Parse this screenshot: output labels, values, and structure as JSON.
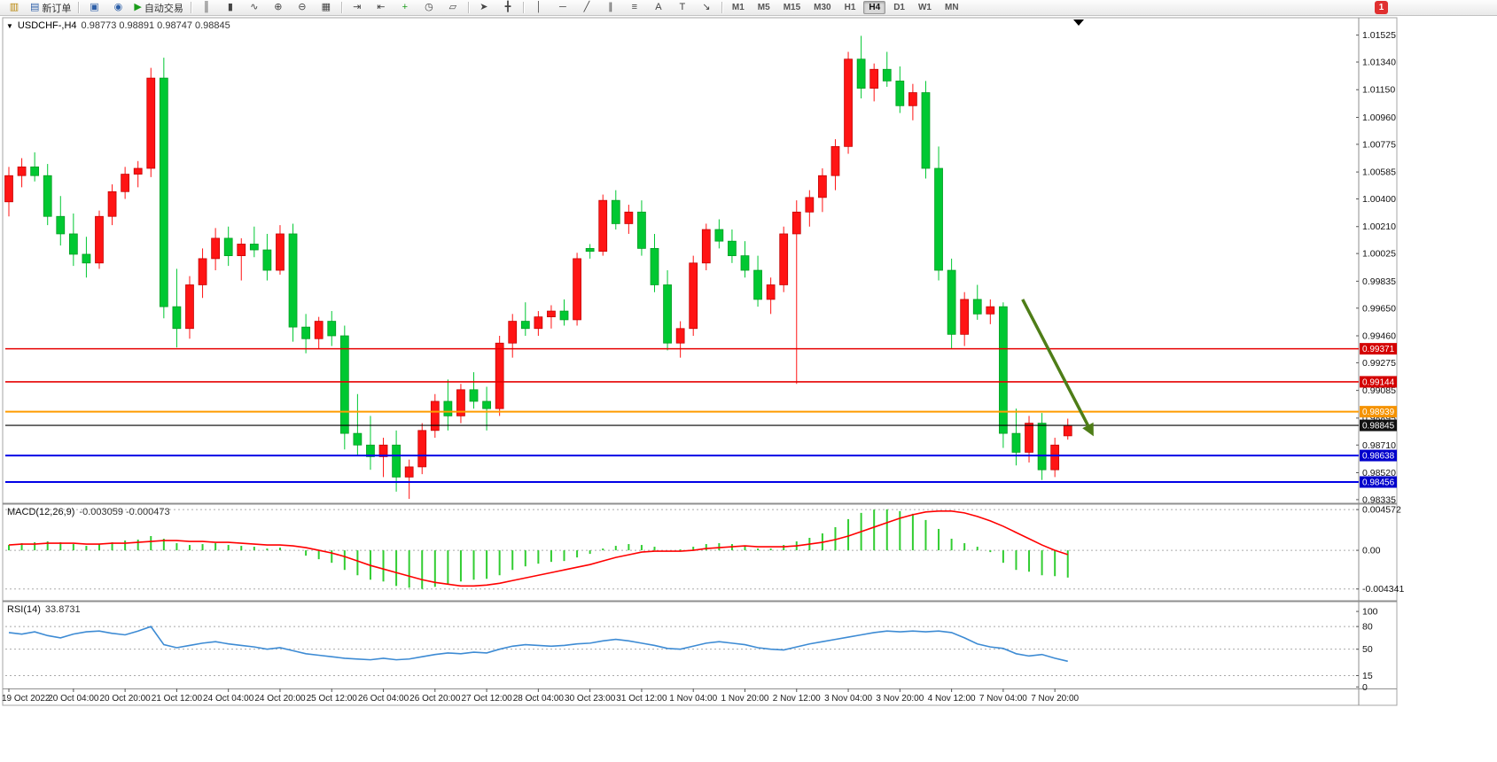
{
  "icons": {
    "collapse": "▼"
  },
  "toolbar": {
    "badge": "1",
    "timeframes": [
      "M1",
      "M5",
      "M15",
      "M30",
      "H1",
      "H4",
      "D1",
      "W1",
      "MN"
    ],
    "active_timeframe": "H4",
    "items": [
      {
        "t": "icon",
        "name": "new-chart",
        "g": "▥",
        "c": "#b8860b"
      },
      {
        "t": "text",
        "name": "new-order",
        "g": "▤",
        "c": "#2d5fa8",
        "label": "新订单"
      },
      {
        "t": "sep"
      },
      {
        "t": "icon",
        "name": "charts-window",
        "g": "▣",
        "c": "#2d5fa8"
      },
      {
        "t": "icon",
        "name": "sound",
        "g": "◉",
        "c": "#2d5fa8"
      },
      {
        "t": "text",
        "name": "auto-trading",
        "g": "▶",
        "c": "#1a9c1a",
        "label": "自动交易"
      },
      {
        "t": "sep"
      },
      {
        "t": "icon",
        "name": "bars-chart-type",
        "g": "║",
        "c": "#444444"
      },
      {
        "t": "icon",
        "name": "candles-chart-type",
        "g": "▮",
        "c": "#444444"
      },
      {
        "t": "icon",
        "name": "line-chart-type",
        "g": "∿",
        "c": "#444444"
      },
      {
        "t": "icon",
        "name": "zoom-in",
        "g": "⊕",
        "c": "#444444"
      },
      {
        "t": "icon",
        "name": "zoom-out",
        "g": "⊖",
        "c": "#444444"
      },
      {
        "t": "icon",
        "name": "tile-windows",
        "g": "▦",
        "c": "#444444"
      },
      {
        "t": "sep"
      },
      {
        "t": "icon",
        "name": "auto-scroll",
        "g": "⇥",
        "c": "#444444"
      },
      {
        "t": "icon",
        "name": "chart-shift",
        "g": "⇤",
        "c": "#444444"
      },
      {
        "t": "icon",
        "name": "add-indicator",
        "g": "+",
        "c": "#1a9c1a"
      },
      {
        "t": "icon",
        "name": "period-clock",
        "g": "◷",
        "c": "#444444"
      },
      {
        "t": "icon",
        "name": "objects-list",
        "g": "▱",
        "c": "#444444"
      },
      {
        "t": "sep"
      },
      {
        "t": "icon",
        "name": "cursor",
        "g": "➤",
        "c": "#444444"
      },
      {
        "t": "icon",
        "name": "crosshair",
        "g": "╋",
        "c": "#444444"
      },
      {
        "t": "sep"
      },
      {
        "t": "icon",
        "name": "vertical-line-tool",
        "g": "│",
        "c": "#444444"
      },
      {
        "t": "icon",
        "name": "horizontal-line-tool",
        "g": "─",
        "c": "#444444"
      },
      {
        "t": "icon",
        "name": "trendline-tool",
        "g": "╱",
        "c": "#444444"
      },
      {
        "t": "icon",
        "name": "channel-tool",
        "g": "∥",
        "c": "#444444"
      },
      {
        "t": "icon",
        "name": "fibonacci-tool",
        "g": "≡",
        "c": "#444444"
      },
      {
        "t": "icon",
        "name": "text-tool",
        "g": "A",
        "c": "#444444"
      },
      {
        "t": "icon",
        "name": "label-tool",
        "g": "T",
        "c": "#444444"
      },
      {
        "t": "icon",
        "name": "arrow-tool",
        "g": "↘",
        "c": "#444444"
      },
      {
        "t": "sep"
      }
    ]
  },
  "chart_data": {
    "type": "candlestick+indicators",
    "symbol": "USDCHF-",
    "timeframe": "H4",
    "title": "USDCHF-,H4",
    "ohlc_text": "0.98773 0.98891 0.98747 0.98845",
    "colors": {
      "up": "#ff1414",
      "up_edge": "#c00000",
      "down": "#00c832",
      "down_edge": "#009a20",
      "macd_hist": "#32cd32",
      "macd_signal": "#ff0000",
      "rsi_line": "#3d8bd4",
      "grid": "#ababab",
      "axis_text": "#111111",
      "arrow": "#4e7d17"
    },
    "price_axis_ticks": [
      "1.01525",
      "1.01340",
      "1.01150",
      "1.00960",
      "1.00775",
      "1.00585",
      "1.00400",
      "1.00210",
      "1.00025",
      "0.99835",
      "0.99650",
      "0.99460",
      "0.99275",
      "0.99085",
      "0.98895",
      "0.98710",
      "0.98520",
      "0.98335"
    ],
    "hlines": [
      {
        "price": 0.99371,
        "label": "0.99371",
        "color": "#e60000",
        "bg": "#d40000",
        "w": 1.6
      },
      {
        "price": 0.99144,
        "label": "0.99144",
        "color": "#e60000",
        "bg": "#d40000",
        "w": 1.6
      },
      {
        "price": 0.98939,
        "label": "0.98939",
        "color": "#ff9c00",
        "bg": "#f59300",
        "w": 2
      },
      {
        "price": 0.98845,
        "label": "0.98845",
        "color": "#000000",
        "bg": "#111111",
        "w": 1.2
      },
      {
        "price": 0.98638,
        "label": "0.98638",
        "color": "#0000e6",
        "bg": "#0000cc",
        "w": 2
      },
      {
        "price": 0.98456,
        "label": "0.98456",
        "color": "#0000e6",
        "bg": "#0000cc",
        "w": 2
      }
    ],
    "arrow_annotation": {
      "from": {
        "ci": 78.5,
        "price": 0.9971
      },
      "to": {
        "ci": 84,
        "price": 0.9877
      }
    },
    "x_label_indices": [
      0,
      5,
      9,
      13,
      17,
      21,
      25,
      29,
      33,
      37,
      41,
      45,
      49,
      53,
      57,
      61,
      65,
      69,
      73,
      77,
      81
    ],
    "x_labels": [
      "19 Oct 2022",
      "20 Oct 04:00",
      "20 Oct 20:00",
      "21 Oct 12:00",
      "24 Oct 04:00",
      "24 Oct 20:00",
      "25 Oct 12:00",
      "26 Oct 04:00",
      "26 Oct 20:00",
      "27 Oct 12:00",
      "28 Oct 04:00",
      "30 Oct 23:00",
      "31 Oct 12:00",
      "1 Nov 04:00",
      "1 Nov 20:00",
      "2 Nov 12:00",
      "3 Nov 04:00",
      "3 Nov 20:00",
      "4 Nov 12:00",
      "7 Nov 04:00",
      "7 Nov 20:00"
    ],
    "candles": [
      [
        1.0038,
        1.0062,
        1.0028,
        1.0056
      ],
      [
        1.0056,
        1.0068,
        1.0048,
        1.0062
      ],
      [
        1.0062,
        1.0072,
        1.0052,
        1.0056
      ],
      [
        1.0056,
        1.0064,
        1.0022,
        1.0028
      ],
      [
        1.0028,
        1.0042,
        1.0008,
        1.0016
      ],
      [
        1.0016,
        1.003,
        0.9994,
        1.0002
      ],
      [
        1.0002,
        1.0014,
        0.9986,
        0.9996
      ],
      [
        0.9996,
        1.0032,
        0.9992,
        1.0028
      ],
      [
        1.0028,
        1.005,
        1.0022,
        1.0045
      ],
      [
        1.0045,
        1.0062,
        1.004,
        1.0057
      ],
      [
        1.0057,
        1.0066,
        1.0048,
        1.0061
      ],
      [
        1.0061,
        1.013,
        1.0055,
        1.0123
      ],
      [
        1.0123,
        1.0137,
        0.9958,
        0.9966
      ],
      [
        0.9966,
        0.9992,
        0.9938,
        0.9951
      ],
      [
        0.9951,
        0.9987,
        0.9944,
        0.9981
      ],
      [
        0.9981,
        1.0006,
        0.9972,
        0.9999
      ],
      [
        0.9999,
        1.002,
        0.9991,
        1.0013
      ],
      [
        1.0013,
        1.0021,
        0.9994,
        1.0001
      ],
      [
        1.0001,
        1.0013,
        0.9984,
        1.0009
      ],
      [
        1.0009,
        1.0021,
        1.0,
        1.0005
      ],
      [
        1.0005,
        1.0016,
        0.9984,
        0.9991
      ],
      [
        0.9991,
        1.0022,
        0.9988,
        1.0016
      ],
      [
        1.0016,
        1.0023,
        0.9942,
        0.9952
      ],
      [
        0.9952,
        0.9961,
        0.9934,
        0.9944
      ],
      [
        0.9944,
        0.9959,
        0.9937,
        0.9956
      ],
      [
        0.9956,
        0.9963,
        0.9939,
        0.9946
      ],
      [
        0.9946,
        0.9953,
        0.9868,
        0.9879
      ],
      [
        0.9879,
        0.9906,
        0.9864,
        0.9871
      ],
      [
        0.9871,
        0.9891,
        0.9854,
        0.9863
      ],
      [
        0.9863,
        0.9876,
        0.9849,
        0.9871
      ],
      [
        0.9871,
        0.9881,
        0.9839,
        0.9849
      ],
      [
        0.9849,
        0.9861,
        0.9834,
        0.9856
      ],
      [
        0.9856,
        0.9886,
        0.9851,
        0.9881
      ],
      [
        0.9881,
        0.9906,
        0.9876,
        0.9901
      ],
      [
        0.9901,
        0.9916,
        0.9881,
        0.9891
      ],
      [
        0.9891,
        0.9913,
        0.9886,
        0.9909
      ],
      [
        0.9909,
        0.9921,
        0.9896,
        0.9901
      ],
      [
        0.9901,
        0.9911,
        0.9881,
        0.9896
      ],
      [
        0.9896,
        0.9946,
        0.9891,
        0.9941
      ],
      [
        0.9941,
        0.9961,
        0.9931,
        0.9956
      ],
      [
        0.9956,
        0.9969,
        0.9946,
        0.9951
      ],
      [
        0.9951,
        0.9963,
        0.9946,
        0.9959
      ],
      [
        0.9959,
        0.9967,
        0.9951,
        0.9963
      ],
      [
        0.9963,
        0.9971,
        0.9953,
        0.9957
      ],
      [
        0.9957,
        1.0003,
        0.9953,
        0.9999
      ],
      [
        1.0006,
        1.0009,
        0.9999,
        1.0004
      ],
      [
        1.0004,
        1.0043,
        1.0001,
        1.0039
      ],
      [
        1.0039,
        1.0046,
        1.0019,
        1.0023
      ],
      [
        1.0023,
        1.0036,
        1.0016,
        1.0031
      ],
      [
        1.0031,
        1.0039,
        1.0001,
        1.0006
      ],
      [
        1.0006,
        1.0016,
        0.9976,
        0.9981
      ],
      [
        0.9981,
        0.9991,
        0.9936,
        0.9941
      ],
      [
        0.9941,
        0.9956,
        0.9931,
        0.9951
      ],
      [
        0.9951,
        1.0001,
        0.9946,
        0.9996
      ],
      [
        0.9996,
        1.0023,
        0.9991,
        1.0019
      ],
      [
        1.0019,
        1.0026,
        1.0006,
        1.0011
      ],
      [
        1.0011,
        1.0019,
        0.9996,
        1.0001
      ],
      [
        1.0001,
        1.0011,
        0.9986,
        0.9991
      ],
      [
        0.9991,
        1.0001,
        0.9966,
        0.9971
      ],
      [
        0.9971,
        0.9986,
        0.9961,
        0.9981
      ],
      [
        0.9981,
        1.0021,
        0.9976,
        1.0016
      ],
      [
        1.0016,
        1.0039,
        0.9913,
        1.0031
      ],
      [
        1.0031,
        1.0046,
        1.0021,
        1.0041
      ],
      [
        1.0041,
        1.0061,
        1.0031,
        1.0056
      ],
      [
        1.0056,
        1.0081,
        1.0046,
        1.0076
      ],
      [
        1.0076,
        1.0141,
        1.0071,
        1.0136
      ],
      [
        1.0136,
        1.0152,
        1.0109,
        1.0116
      ],
      [
        1.0116,
        1.0133,
        1.0107,
        1.0129
      ],
      [
        1.0129,
        1.0141,
        1.0117,
        1.0121
      ],
      [
        1.0121,
        1.0131,
        1.0099,
        1.0104
      ],
      [
        1.0104,
        1.0119,
        1.0094,
        1.0113
      ],
      [
        1.0113,
        1.0121,
        1.0054,
        1.0061
      ],
      [
        1.0061,
        1.0076,
        0.9984,
        0.9991
      ],
      [
        0.9991,
        0.9999,
        0.9937,
        0.9947
      ],
      [
        0.9947,
        0.9976,
        0.9939,
        0.9971
      ],
      [
        0.9971,
        0.9981,
        0.9957,
        0.9961
      ],
      [
        0.9961,
        0.9971,
        0.9954,
        0.9966
      ],
      [
        0.9966,
        0.9969,
        0.9869,
        0.9879
      ],
      [
        0.9879,
        0.9896,
        0.9857,
        0.9866
      ],
      [
        0.9866,
        0.9891,
        0.9859,
        0.9886
      ],
      [
        0.9886,
        0.9893,
        0.9847,
        0.9854
      ],
      [
        0.9854,
        0.9876,
        0.9849,
        0.9871
      ],
      [
        0.98773,
        0.98891,
        0.98747,
        0.98845
      ]
    ],
    "macd": {
      "label": "MACD(12,26,9)",
      "values_text": "-0.003059 -0.000473",
      "axis": [
        {
          "v": 0.004572,
          "label": "0.004572"
        },
        {
          "v": 0,
          "label": "0.00"
        },
        {
          "v": -0.004341,
          "label": "-0.004341"
        }
      ],
      "levels": [
        0.004572,
        0,
        -0.004341
      ],
      "hist": [
        0.0006,
        0.0008,
        0.0009,
        0.001,
        0.0009,
        0.0007,
        0.0005,
        0.0007,
        0.0009,
        0.0011,
        0.0012,
        0.0016,
        0.0013,
        0.0008,
        0.0006,
        0.0007,
        0.0008,
        0.0006,
        0.0005,
        0.0004,
        0.0002,
        0.0003,
        0.0,
        -0.0006,
        -0.001,
        -0.0014,
        -0.0022,
        -0.0028,
        -0.0033,
        -0.0035,
        -0.004,
        -0.0042,
        -0.004341,
        -0.0041,
        -0.0038,
        -0.0035,
        -0.0033,
        -0.0032,
        -0.0028,
        -0.0022,
        -0.0018,
        -0.0015,
        -0.0013,
        -0.0012,
        -0.0008,
        -0.0004,
        0.0002,
        0.0005,
        0.0007,
        0.0006,
        0.0004,
        0.0,
        0.0001,
        0.0004,
        0.0007,
        0.0008,
        0.0007,
        0.0005,
        0.0002,
        0.0002,
        0.0006,
        0.001,
        0.0014,
        0.0019,
        0.0026,
        0.0035,
        0.0042,
        0.004572,
        0.0046,
        0.0044,
        0.0041,
        0.0034,
        0.0024,
        0.0013,
        0.0008,
        0.0004,
        -0.0002,
        -0.0014,
        -0.0022,
        -0.0024,
        -0.0028,
        -0.0029,
        -0.003059
      ],
      "signal": [
        0.0006,
        0.0007,
        0.0007,
        0.0008,
        0.0008,
        0.0008,
        0.0007,
        0.0007,
        0.0008,
        0.0008,
        0.0009,
        0.001,
        0.0011,
        0.0011,
        0.001,
        0.001,
        0.0009,
        0.0009,
        0.0008,
        0.0007,
        0.0006,
        0.0006,
        0.0005,
        0.0003,
        0.0,
        -0.0003,
        -0.0007,
        -0.0012,
        -0.0017,
        -0.0021,
        -0.0025,
        -0.0029,
        -0.0033,
        -0.0036,
        -0.0038,
        -0.004,
        -0.004,
        -0.0039,
        -0.0037,
        -0.0034,
        -0.0031,
        -0.0028,
        -0.0025,
        -0.0022,
        -0.0019,
        -0.0016,
        -0.0012,
        -0.0008,
        -0.0005,
        -0.0002,
        -0.0001,
        -0.0001,
        -0.0001,
        0.0,
        0.0002,
        0.0003,
        0.0004,
        0.0005,
        0.0004,
        0.0004,
        0.0004,
        0.0005,
        0.0007,
        0.0009,
        0.0012,
        0.0016,
        0.0021,
        0.0026,
        0.0031,
        0.0036,
        0.004,
        0.0043,
        0.0044,
        0.0044,
        0.0042,
        0.0038,
        0.0033,
        0.0027,
        0.002,
        0.0013,
        0.0006,
        0.0,
        -0.000473
      ]
    },
    "rsi": {
      "label": "RSI(14)",
      "value_text": "33.8731",
      "axis": [
        {
          "v": 100,
          "label": "100"
        },
        {
          "v": 80,
          "label": "80"
        },
        {
          "v": 50,
          "label": "50"
        },
        {
          "v": 15,
          "label": "15"
        },
        {
          "v": 0,
          "label": "0"
        }
      ],
      "levels": [
        80,
        50,
        15
      ],
      "values": [
        72,
        70,
        73,
        68,
        65,
        70,
        73,
        74,
        71,
        69,
        74,
        80,
        56,
        52,
        55,
        58,
        60,
        57,
        55,
        53,
        50,
        52,
        48,
        44,
        42,
        40,
        38,
        37,
        36,
        38,
        36,
        37,
        40,
        43,
        45,
        44,
        46,
        45,
        50,
        54,
        56,
        55,
        54,
        55,
        57,
        58,
        61,
        63,
        61,
        58,
        55,
        51,
        50,
        54,
        58,
        60,
        58,
        56,
        52,
        50,
        49,
        53,
        57,
        60,
        63,
        66,
        69,
        72,
        74,
        73,
        74,
        73,
        74,
        72,
        65,
        57,
        53,
        51,
        44,
        41,
        43,
        38,
        34
      ]
    }
  }
}
